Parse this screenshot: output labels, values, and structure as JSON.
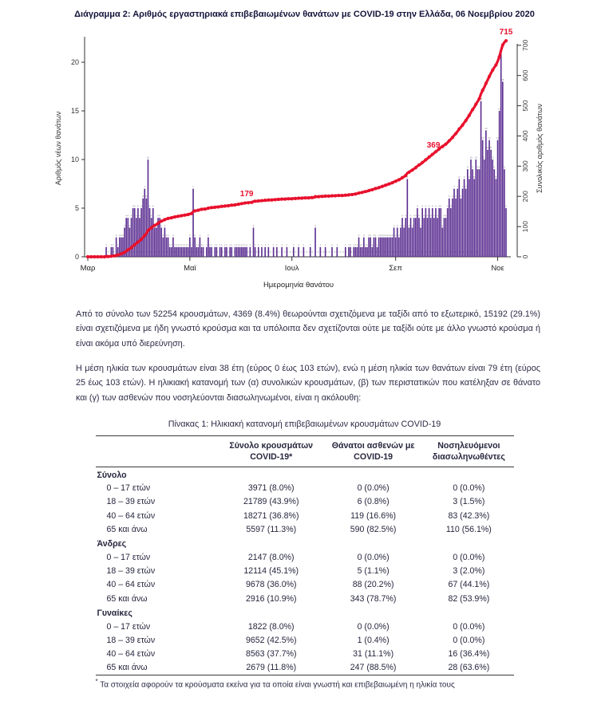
{
  "page": {
    "title": "Διάγραμμα 2: Αριθμός εργαστηριακά επιβεβαιωμένων θανάτων με COVID-19 στην Ελλάδα, 06 Νοεμβρίου 2020"
  },
  "paragraphs": [
    "Από το σύνολο των 52254 κρουσμάτων, 4369 (8.4%) θεωρούνται σχετιζόμενα με ταξίδι από το εξωτερικό, 15192 (29.1%) είναι σχετιζόμενα με ήδη γνωστό κρούσμα και τα υπόλοιπα δεν σχετίζονται ούτε με ταξίδι ούτε με άλλο γνωστό κρούσμα ή είναι ακόμα υπό διερεύνηση.",
    "Η μέση ηλικία των κρουσμάτων είναι 38 έτη (εύρος 0 έως 103 ετών), ενώ η μέση ηλικία των θανάτων είναι 79 έτη (εύρος 25 έως 103 ετών). Η ηλικιακή κατανομή των (α) συνολικών κρουσμάτων, (β) των περιστατικών που κατέληξαν σε θάνατο και (γ) των ασθενών που νοσηλεύονται διασωληνωμένοι, είναι η ακόλουθη:"
  ],
  "chart_data": {
    "type": "bar",
    "title": "Διάγραμμα 2: Αριθμός εργαστηριακά επιβεβαιωμένων θανάτων με COVID-19 στην Ελλάδα, 06 Νοεμβρίου 2020",
    "xlabel": "Ημερομηνία θανάτου",
    "ylabel_left": "Αριθμός νέων θανάτων",
    "ylabel_right": "Συνολικός αριθμός θανάτων",
    "x_tick_labels": [
      "Μαρ",
      "Μαϊ",
      "Ιουλ",
      "Σεπ",
      "Νοε"
    ],
    "x_tick_day_indices": [
      0,
      61,
      122,
      184,
      245
    ],
    "left_ticks": [
      0,
      5,
      10,
      15,
      20
    ],
    "right_ticks": [
      0,
      100,
      200,
      300,
      400,
      500,
      600,
      700
    ],
    "ylim_left": [
      0,
      22.3
    ],
    "ylim_right": [
      0,
      718
    ],
    "bar_color": "#5a2c90",
    "line_color": "#e8112d",
    "daily_deaths": [
      0,
      0,
      0,
      0,
      0,
      0,
      0,
      0,
      0,
      0,
      0,
      1,
      0,
      0,
      1,
      1,
      0,
      2,
      1,
      2,
      2,
      2,
      3,
      4,
      4,
      3,
      4,
      5,
      5,
      4,
      5,
      4,
      5,
      6,
      7,
      6,
      10,
      5,
      4,
      5,
      3,
      3,
      4,
      4,
      3,
      2,
      3,
      2,
      2,
      1,
      1,
      2,
      1,
      1,
      1,
      1,
      1,
      1,
      1,
      1,
      1,
      2,
      1,
      7,
      2,
      1,
      1,
      2,
      1,
      1,
      0,
      1,
      2,
      1,
      1,
      0,
      1,
      1,
      0,
      1,
      1,
      0,
      1,
      1,
      0,
      1,
      1,
      0,
      1,
      1,
      1,
      1,
      1,
      1,
      1,
      1,
      0,
      1,
      0,
      3,
      1,
      0,
      1,
      0,
      1,
      0,
      1,
      0,
      1,
      0,
      0,
      1,
      0,
      1,
      0,
      0,
      1,
      0,
      0,
      1,
      0,
      0,
      0,
      1,
      0,
      0,
      1,
      0,
      0,
      1,
      0,
      0,
      0,
      1,
      0,
      0,
      3,
      0,
      0,
      1,
      0,
      0,
      1,
      0,
      0,
      0,
      1,
      0,
      0,
      1,
      0,
      0,
      0,
      0,
      1,
      0,
      1,
      1,
      0,
      1,
      1,
      1,
      2,
      1,
      1,
      2,
      1,
      1,
      2,
      2,
      1,
      2,
      2,
      1,
      2,
      2,
      2,
      2,
      2,
      2,
      2,
      2,
      2,
      3,
      2,
      3,
      2,
      3,
      4,
      3,
      4,
      8,
      3,
      4,
      3,
      4,
      4,
      5,
      4,
      3,
      5,
      4,
      5,
      4,
      5,
      4,
      5,
      4,
      5,
      4,
      5,
      5,
      3,
      4,
      4,
      5,
      6,
      5,
      6,
      7,
      6,
      7,
      8,
      6,
      7,
      8,
      7,
      9,
      8,
      10,
      9,
      8,
      10,
      9,
      9,
      16,
      12,
      10,
      13,
      11,
      12,
      11,
      10,
      9,
      8,
      12,
      15,
      21,
      18,
      9,
      5
    ],
    "cumulative_final": 715,
    "annotations": [
      {
        "day_index": 95,
        "label": "179"
      },
      {
        "day_index": 213,
        "label": "369"
      },
      {
        "day_index": 250,
        "label": "715"
      }
    ],
    "legend": "none",
    "grid": "off"
  },
  "table": {
    "title": "Πίνακας 1: Ηλικιακή κατανομή επιβεβαιωμένων κρουσμάτων COVID-19",
    "headers": [
      {
        "line1": "Σύνολο κρουσμάτων",
        "line2": "COVID-19*"
      },
      {
        "line1": "Θάνατοι ασθενών με",
        "line2": "COVID-19"
      },
      {
        "line1": "Νοσηλευόμενοι",
        "line2": "διασωληνωθέντες"
      }
    ],
    "sections": [
      {
        "label": "Σύνολο",
        "rows": [
          {
            "age": "0 – 17 ετών",
            "cases": "3971 (8.0%)",
            "deaths": "0 (0.0%)",
            "intubated": "0 (0.0%)"
          },
          {
            "age": "18 – 39 ετών",
            "cases": "21789 (43.9%)",
            "deaths": "6 (0.8%)",
            "intubated": "3 (1.5%)"
          },
          {
            "age": "40 – 64 ετών",
            "cases": "18271 (36.8%)",
            "deaths": "119 (16.6%)",
            "intubated": "83 (42.3%)"
          },
          {
            "age": "65 και άνω",
            "cases": "5597 (11.3%)",
            "deaths": "590 (82.5%)",
            "intubated": "110 (56.1%)"
          }
        ]
      },
      {
        "label": "Άνδρες",
        "rows": [
          {
            "age": "0 – 17 ετών",
            "cases": "2147 (8.0%)",
            "deaths": "0 (0.0%)",
            "intubated": "0 (0.0%)"
          },
          {
            "age": "18 – 39 ετών",
            "cases": "12114 (45.1%)",
            "deaths": "5 (1.1%)",
            "intubated": "3 (2.0%)"
          },
          {
            "age": "40 – 64 ετών",
            "cases": "9678 (36.0%)",
            "deaths": "88 (20.2%)",
            "intubated": "67 (44.1%)"
          },
          {
            "age": "65 και άνω",
            "cases": "2916 (10.9%)",
            "deaths": "343 (78.7%)",
            "intubated": "82 (53.9%)"
          }
        ]
      },
      {
        "label": "Γυναίκες",
        "rows": [
          {
            "age": "0 – 17 ετών",
            "cases": "1822 (8.0%)",
            "deaths": "0 (0.0%)",
            "intubated": "0 (0.0%)"
          },
          {
            "age": "18 – 39 ετών",
            "cases": "9652 (42.5%)",
            "deaths": "1 (0.4%)",
            "intubated": "0 (0.0%)"
          },
          {
            "age": "40 – 64 ετών",
            "cases": "8563 (37.7%)",
            "deaths": "31 (11.1%)",
            "intubated": "16 (36.4%)"
          },
          {
            "age": "65 και άνω",
            "cases": "2679 (11.8%)",
            "deaths": "247 (88.5%)",
            "intubated": "28 (63.6%)"
          }
        ]
      }
    ],
    "footnote_marker": "*",
    "footnote": "Τα στοιχεία αφορούν τα κρούσματα εκείνα για τα οποία είναι γνωστή και επιβεβαιωμένη η ηλικία τους"
  }
}
